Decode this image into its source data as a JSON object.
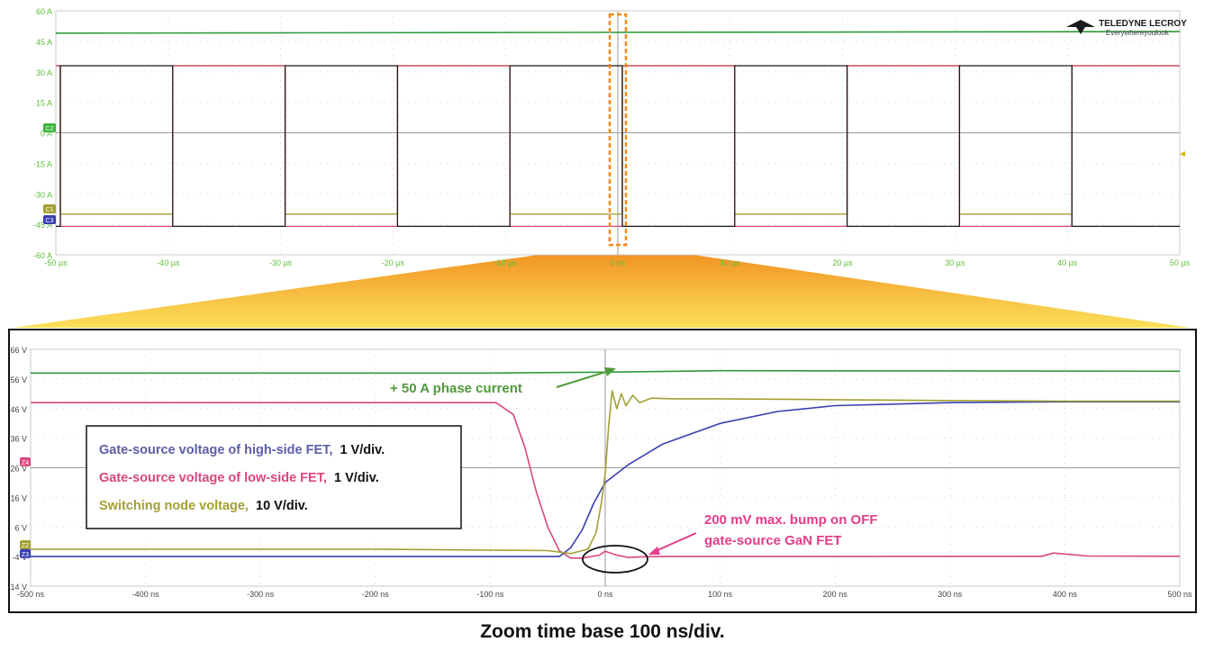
{
  "vendor": {
    "name": "TELEDYNE LECROY",
    "tagline": "Everywhereyoulook"
  },
  "caption": "Zoom time base 100 ns/div.",
  "colors": {
    "green": "#2f9a3a",
    "pink": "#d9467e",
    "blue": "#3a3fb0",
    "olive": "#a3a033",
    "black": "#1a1a1a",
    "annot_green": "#4f9b3a",
    "annot_pink": "#e33d8a",
    "zoom_orange": "#f08a1c",
    "zoom_yellow": "#fbe15a"
  },
  "chart_data": [
    {
      "type": "line",
      "name": "overview",
      "xlim": [
        -50,
        50
      ],
      "ylim": [
        -60,
        60
      ],
      "x_ticks": [
        "-50 µs",
        "-40 µs",
        "-30 µs",
        "-20 µs",
        "-10 µs",
        "0 ns",
        "10 µs",
        "20 µs",
        "30 µs",
        "40 µs",
        "50 µs"
      ],
      "y_ticks": [
        "60 A",
        "45 A",
        "30 A",
        "15 A",
        "0 A",
        "-15 A",
        "-30 A",
        "-45 A",
        "-60 A"
      ],
      "channel_markers": [
        "C2",
        "C1",
        "C3"
      ],
      "grid": true,
      "period_us": 20,
      "series": [
        {
          "channel": "green",
          "values_desc": "constant",
          "level": 49
        },
        {
          "channel": "pink",
          "high": 33,
          "low": -46
        },
        {
          "channel": "black",
          "high": 33,
          "low": -46
        },
        {
          "channel": "olive",
          "high": 33,
          "low": -40
        }
      ]
    },
    {
      "type": "line",
      "name": "zoom",
      "xlim": [
        -500,
        500
      ],
      "ylim": [
        -14,
        66
      ],
      "x_ticks": [
        "-500 ns",
        "-400 ns",
        "-300 ns",
        "-200 ns",
        "-100 ns",
        "0 ns",
        "100 ns",
        "200 ns",
        "300 ns",
        "400 ns",
        "500 ns"
      ],
      "y_ticks": [
        "66 V",
        "56 V",
        "46 V",
        "36 V",
        "26 V",
        "16 V",
        "6 V",
        "-4 V",
        "-14 V"
      ],
      "channel_markers": [
        "Z4",
        "Z2",
        "Z3"
      ],
      "grid": true,
      "series": [
        {
          "channel": "green",
          "x": [
            -500,
            -100,
            0,
            100,
            500
          ],
          "y": [
            58,
            58,
            58.3,
            58.8,
            58.6
          ]
        },
        {
          "channel": "pink",
          "x": [
            -500,
            -95,
            -80,
            -70,
            -60,
            -50,
            -40,
            -30,
            -20,
            -5,
            0,
            8,
            20,
            40,
            200,
            380,
            390,
            420,
            500
          ],
          "y": [
            48,
            48,
            44,
            33,
            18,
            6,
            -2,
            -4.5,
            -4.5,
            -3.5,
            -2.2,
            -3.3,
            -4.3,
            -4,
            -4,
            -3.9,
            -2.8,
            -3.8,
            -3.9
          ]
        },
        {
          "channel": "blue",
          "x": [
            -500,
            -60,
            -40,
            -30,
            -20,
            -10,
            0,
            20,
            50,
            100,
            150,
            200,
            300,
            400,
            500
          ],
          "y": [
            -4,
            -4,
            -4,
            -1,
            5,
            14,
            21,
            27,
            34,
            41,
            45,
            47,
            48,
            48.3,
            48.3
          ]
        },
        {
          "channel": "olive",
          "x": [
            -500,
            -200,
            -50,
            -30,
            -15,
            -8,
            -3,
            0,
            3,
            6,
            10,
            14,
            18,
            24,
            30,
            40,
            60,
            100,
            200,
            300,
            400,
            500
          ],
          "y": [
            -1.5,
            -1.5,
            -2,
            -3,
            -1.5,
            4,
            15,
            24,
            40,
            52,
            46,
            51,
            47,
            50.5,
            48,
            49.5,
            49.3,
            49.3,
            49,
            48.7,
            48.5,
            48.5
          ]
        }
      ]
    }
  ],
  "annotations": {
    "phase_current": "+ 50 A phase current",
    "bump": [
      "200 mV max. bump on OFF",
      "gate-source GaN FET"
    ],
    "legend": [
      {
        "text": "Gate-source voltage of high-side FET,",
        "scale": "1 V/div.",
        "color": "#5c5ea8"
      },
      {
        "text": "Gate-source voltage of low-side FET,",
        "scale": "1 V/div.",
        "color": "#d9467e"
      },
      {
        "text": "Switching node voltage,",
        "scale": "10 V/div.",
        "color": "#a3a033"
      }
    ]
  }
}
